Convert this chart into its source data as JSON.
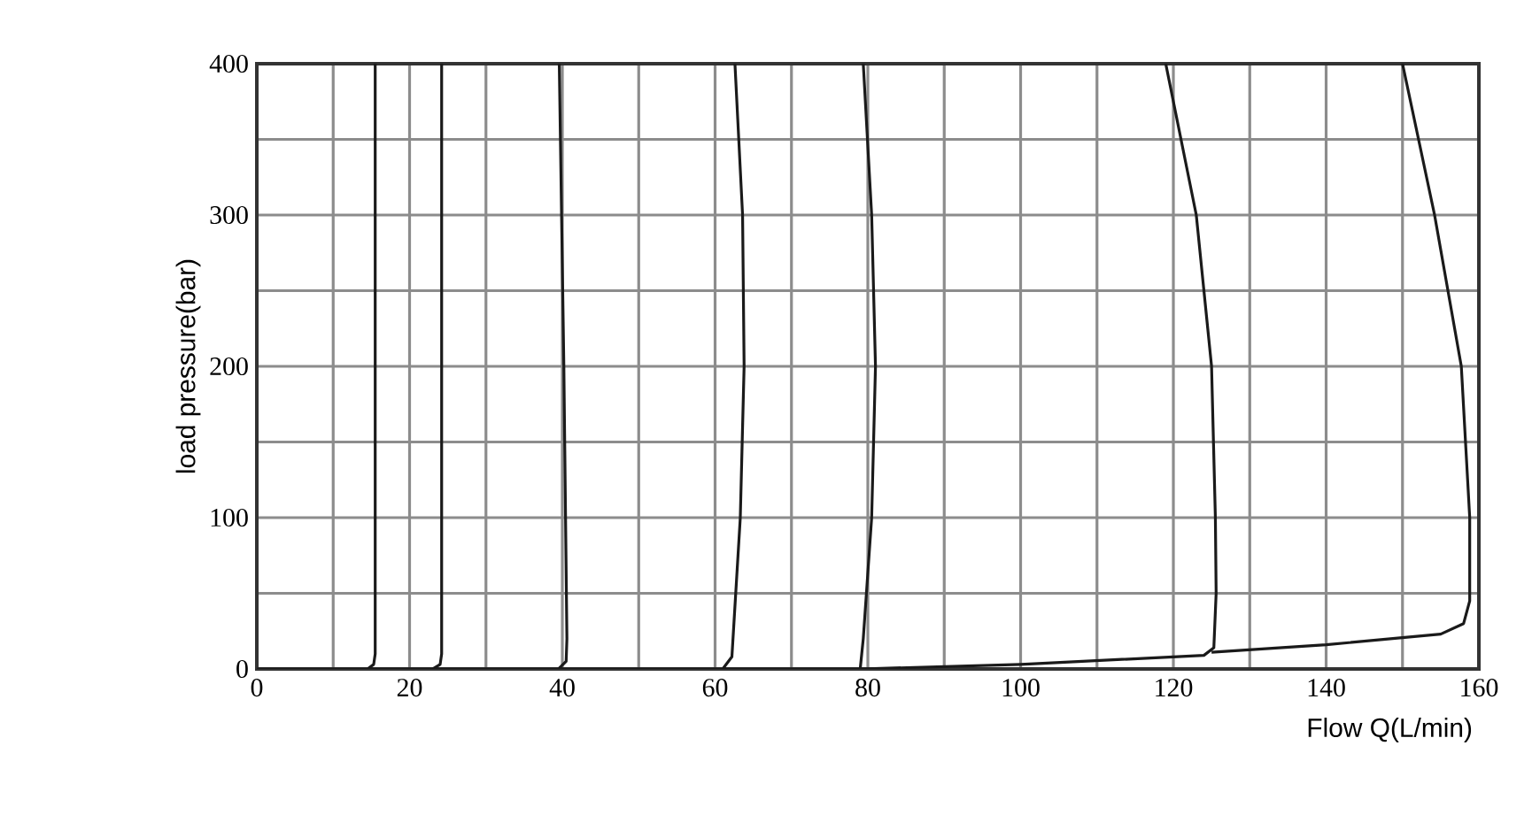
{
  "chart_data": {
    "type": "line",
    "xlabel": "Flow Q(L/min)",
    "ylabel": "load pressure(bar)",
    "xlim": [
      0,
      160
    ],
    "ylim": [
      0,
      400
    ],
    "xticks": [
      0,
      {
        "value": 10,
        "label": null
      },
      20,
      {
        "value": 30,
        "label": null
      },
      40,
      {
        "value": 50,
        "label": null
      },
      60,
      {
        "value": 70,
        "label": null
      },
      80,
      {
        "value": 90,
        "label": null
      },
      100,
      {
        "value": 110,
        "label": null
      },
      120,
      {
        "value": 130,
        "label": null
      },
      140,
      {
        "value": 150,
        "label": null
      },
      160
    ],
    "yticks": [
      0,
      {
        "value": 50,
        "label": null
      },
      100,
      {
        "value": 150,
        "label": null
      },
      200,
      {
        "value": 250,
        "label": null
      },
      300,
      {
        "value": 350,
        "label": null
      },
      400
    ],
    "grid": true,
    "line_style": "solid",
    "series": [
      {
        "color": "#1a1a1a",
        "x": [
          0,
          14.5,
          15.3,
          15.5,
          15.5
        ],
        "values": [
          0,
          0,
          3,
          10,
          400
        ]
      },
      {
        "color": "#1a1a1a",
        "x": [
          14.5,
          23,
          24,
          24.2,
          24.2
        ],
        "values": [
          0,
          0,
          3,
          10,
          400
        ]
      },
      {
        "color": "#1a1a1a",
        "x": [
          23,
          39.5,
          40.5,
          40.6,
          40.2,
          39.6
        ],
        "values": [
          0,
          0,
          5,
          20,
          200,
          400
        ]
      },
      {
        "color": "#1a1a1a",
        "x": [
          39.5,
          61,
          62.2,
          63.3,
          63.8,
          63.6,
          62.6
        ],
        "values": [
          0,
          0,
          8,
          100,
          200,
          300,
          400
        ]
      },
      {
        "color": "#1a1a1a",
        "x": [
          61,
          79,
          79.4,
          80.5,
          81,
          80.5,
          79.4
        ],
        "values": [
          0,
          0,
          20,
          100,
          200,
          300,
          400
        ]
      },
      {
        "color": "#1a1a1a",
        "x": [
          79,
          100,
          124,
          125.3,
          125.6,
          125.5,
          125,
          123,
          119
        ],
        "values": [
          0,
          3,
          9,
          14,
          50,
          100,
          200,
          300,
          400
        ]
      },
      {
        "color": "#1a1a1a",
        "x": [
          125,
          140,
          155,
          158,
          158.8,
          158.8,
          157.7,
          154.2,
          150
        ],
        "values": [
          11,
          16,
          23,
          30,
          45,
          100,
          200,
          300,
          400
        ]
      }
    ]
  }
}
